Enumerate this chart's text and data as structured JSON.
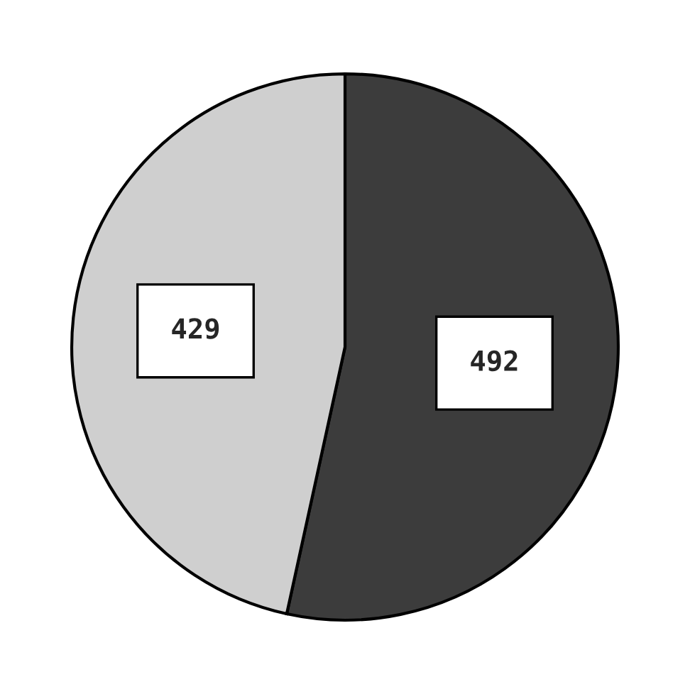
{
  "chart_data": {
    "type": "pie",
    "categories": [
      null,
      null
    ],
    "values": [
      492,
      429
    ],
    "colors": [
      "#3c3c3c",
      "#cfcfcf"
    ],
    "data_labels": true
  }
}
